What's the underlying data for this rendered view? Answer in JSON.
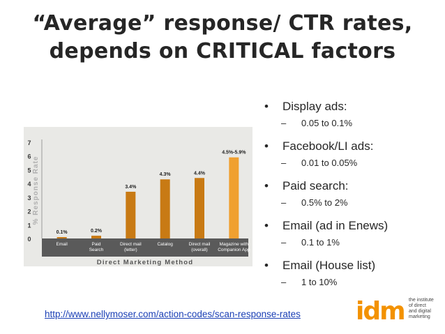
{
  "slide": {
    "title_line1": "“Average” response/ CTR rates,",
    "title_line2": "depends on CRITICAL factors"
  },
  "bullets": [
    {
      "label": "Display ads:",
      "sub": "0.05 to 0.1%"
    },
    {
      "label": "Facebook/LI ads:",
      "sub": "0.01 to 0.05%"
    },
    {
      "label": "Paid search:",
      "sub": "0.5% to 2%"
    },
    {
      "label": "Email (ad in Enews)",
      "sub": "0.1 to 1%"
    },
    {
      "label": "Email (House list)",
      "sub": "1 to 10%"
    }
  ],
  "source_link": "http://www.nellymoser.com/action-codes/scan-response-rates",
  "logo": {
    "mark": "idm",
    "lines": [
      "the institute",
      "of direct",
      "and digital",
      "marketing"
    ]
  },
  "colors": {
    "bar": "#c87a14",
    "bar_highlight": "#f0a030",
    "axis_band": "#5a5a5a",
    "idm_orange": "#f39200"
  },
  "chart_data": {
    "type": "bar",
    "categories": [
      "Email",
      "Paid Search",
      "Direct mail (letter)",
      "Catalog",
      "Direct mail (overall)",
      "Magazine with Companion App"
    ],
    "category_lines": [
      [
        "Email"
      ],
      [
        "Paid",
        "Search"
      ],
      [
        "Direct mail",
        "(letter)"
      ],
      [
        "Catalog"
      ],
      [
        "Direct mail",
        "(overall)"
      ],
      [
        "Magazine with",
        "Companion App"
      ]
    ],
    "values": [
      0.1,
      0.2,
      3.4,
      4.3,
      4.4,
      5.9
    ],
    "data_labels": [
      "0.1%",
      "0.2%",
      "3.4%",
      "4.3%",
      "4.4%",
      "4.5%-5.9%"
    ],
    "yticks": [
      "0",
      "1",
      "2",
      "3",
      "4",
      "5",
      "6",
      "7"
    ],
    "ylim": [
      0,
      7
    ],
    "ylabel": "% Response Rate",
    "xlabel": "Direct Marketing Method",
    "grid": false,
    "legend": "none"
  }
}
